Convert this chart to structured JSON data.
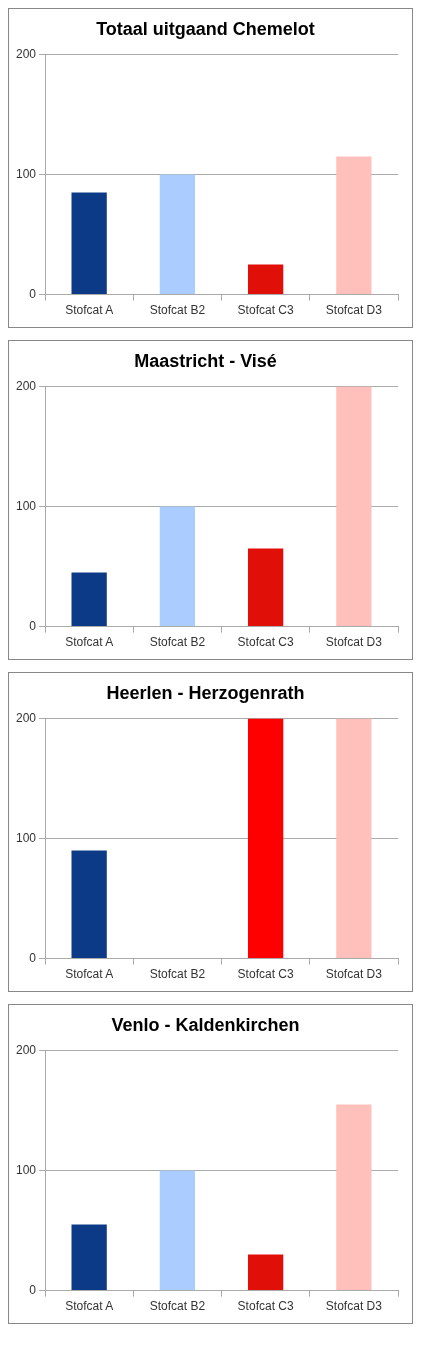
{
  "chart_data": [
    {
      "type": "bar",
      "title": "Totaal uitgaand Chemelot",
      "categories": [
        "Stofcat A",
        "Stofcat B2",
        "Stofcat C3",
        "Stofcat D3"
      ],
      "values": [
        85,
        100,
        25,
        115
      ],
      "colors": [
        "#0d3a87",
        "#aaccff",
        "#e00f08",
        "#ffc0bb"
      ],
      "ylim": [
        0,
        200
      ],
      "yticks": [
        0,
        100,
        200
      ],
      "grid": "y",
      "legend": false
    },
    {
      "type": "bar",
      "title": "Maastricht - Visé",
      "categories": [
        "Stofcat A",
        "Stofcat B2",
        "Stofcat C3",
        "Stofcat D3"
      ],
      "values": [
        45,
        100,
        65,
        200
      ],
      "colors": [
        "#0d3a87",
        "#aaccff",
        "#e00f08",
        "#ffc0bb"
      ],
      "ylim": [
        0,
        200
      ],
      "yticks": [
        0,
        100,
        200
      ],
      "grid": "y",
      "legend": false
    },
    {
      "type": "bar",
      "title": "Heerlen - Herzogenrath",
      "categories": [
        "Stofcat A",
        "Stofcat B2",
        "Stofcat C3",
        "Stofcat D3"
      ],
      "values": [
        90,
        0,
        200,
        200
      ],
      "colors": [
        "#0d3a87",
        "#aaccff",
        "#ff0000",
        "#ffc0bb"
      ],
      "ylim": [
        0,
        200
      ],
      "yticks": [
        0,
        100,
        200
      ],
      "grid": "y",
      "legend": false
    },
    {
      "type": "bar",
      "title": "Venlo - Kaldenkirchen",
      "categories": [
        "Stofcat A",
        "Stofcat B2",
        "Stofcat C3",
        "Stofcat D3"
      ],
      "values": [
        55,
        100,
        30,
        155
      ],
      "colors": [
        "#0d3a87",
        "#aaccff",
        "#e00f08",
        "#ffc0bb"
      ],
      "ylim": [
        0,
        200
      ],
      "yticks": [
        0,
        100,
        200
      ],
      "grid": "y",
      "legend": false
    }
  ]
}
